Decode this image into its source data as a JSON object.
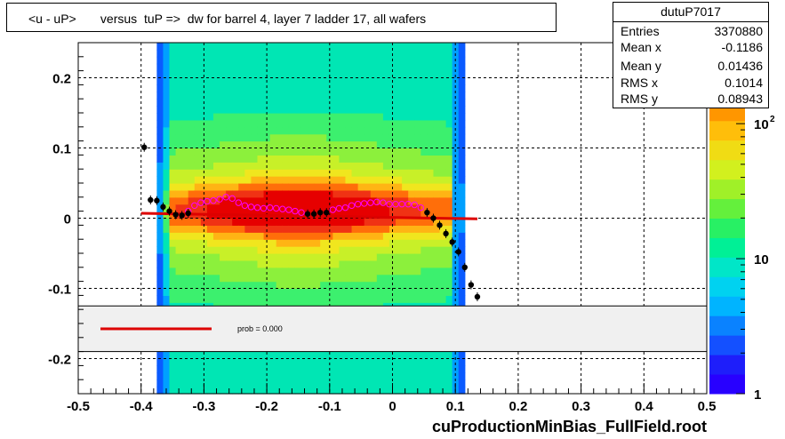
{
  "title": "<u - uP>       versus  tuP =>  dw for barrel 4, layer 7 ladder 17, all wafers",
  "stats": {
    "name": "dutuP7017",
    "rows": [
      {
        "label": "Entries",
        "value": "3370880"
      },
      {
        "label": "Mean x",
        "value": "-0.1186"
      },
      {
        "label": "Mean y",
        "value": "0.01436"
      },
      {
        "label": "RMS x",
        "value": "0.1014"
      },
      {
        "label": "RMS y",
        "value": "0.08943"
      }
    ]
  },
  "footer": "cuProductionMinBias_FullField.root",
  "legend": {
    "prob_text": "prob = 0.000"
  },
  "colors": {
    "fit_line": "#dd0000",
    "profile_markers": "#000000",
    "open_markers": "#ff00ff"
  },
  "chart_data": {
    "type": "heatmap",
    "title": "<u - uP>       versus  tuP =>  dw for barrel 4, layer 7 ladder 17, all wafers",
    "xlim": [
      -0.5,
      0.5
    ],
    "ylim": [
      -0.25,
      0.25
    ],
    "x_ticks": [
      "-0.5",
      "-0.4",
      "-0.3",
      "-0.2",
      "-0.1",
      "0",
      "0.1",
      "0.2",
      "0.3",
      "0.4",
      "0.5"
    ],
    "y_ticks": [
      "-0.2",
      "-0.1",
      "0",
      "0.1",
      "0.2"
    ],
    "z_scale": "log",
    "z_ticks": [
      "1",
      "10",
      "10^2"
    ],
    "grid": true,
    "fit_line": [
      [
        -0.4,
        0.007
      ],
      [
        0.135,
        -0.001
      ]
    ],
    "profile_points": [
      [
        -0.395,
        0.101
      ],
      [
        -0.385,
        0.026
      ],
      [
        -0.375,
        0.025
      ],
      [
        -0.365,
        0.016
      ],
      [
        -0.355,
        0.01
      ],
      [
        -0.345,
        0.005
      ],
      [
        -0.335,
        0.004
      ],
      [
        -0.325,
        0.007
      ],
      [
        -0.135,
        0.006
      ],
      [
        -0.125,
        0.006
      ],
      [
        -0.115,
        0.008
      ],
      [
        -0.105,
        0.008
      ],
      [
        0.055,
        0.008
      ],
      [
        0.065,
        0.0
      ],
      [
        0.075,
        -0.01
      ],
      [
        0.085,
        -0.022
      ],
      [
        0.095,
        -0.034
      ],
      [
        0.105,
        -0.048
      ],
      [
        0.115,
        -0.07
      ],
      [
        0.125,
        -0.095
      ],
      [
        0.135,
        -0.112
      ]
    ],
    "open_points": [
      [
        -0.325,
        0.01
      ],
      [
        -0.315,
        0.018
      ],
      [
        -0.305,
        0.022
      ],
      [
        -0.295,
        0.024
      ],
      [
        -0.285,
        0.025
      ],
      [
        -0.275,
        0.027
      ],
      [
        -0.265,
        0.03
      ],
      [
        -0.255,
        0.028
      ],
      [
        -0.245,
        0.022
      ],
      [
        -0.235,
        0.018
      ],
      [
        -0.225,
        0.016
      ],
      [
        -0.215,
        0.015
      ],
      [
        -0.205,
        0.014
      ],
      [
        -0.195,
        0.015
      ],
      [
        -0.185,
        0.014
      ],
      [
        -0.175,
        0.013
      ],
      [
        -0.165,
        0.012
      ],
      [
        -0.155,
        0.01
      ],
      [
        -0.145,
        0.008
      ],
      [
        -0.095,
        0.012
      ],
      [
        -0.085,
        0.014
      ],
      [
        -0.075,
        0.015
      ],
      [
        -0.065,
        0.018
      ],
      [
        -0.055,
        0.02
      ],
      [
        -0.045,
        0.021
      ],
      [
        -0.035,
        0.022
      ],
      [
        -0.025,
        0.023
      ],
      [
        -0.015,
        0.022
      ],
      [
        -0.005,
        0.02
      ],
      [
        0.005,
        0.02
      ],
      [
        0.015,
        0.02
      ],
      [
        0.025,
        0.02
      ],
      [
        0.035,
        0.019
      ],
      [
        0.045,
        0.015
      ]
    ]
  }
}
